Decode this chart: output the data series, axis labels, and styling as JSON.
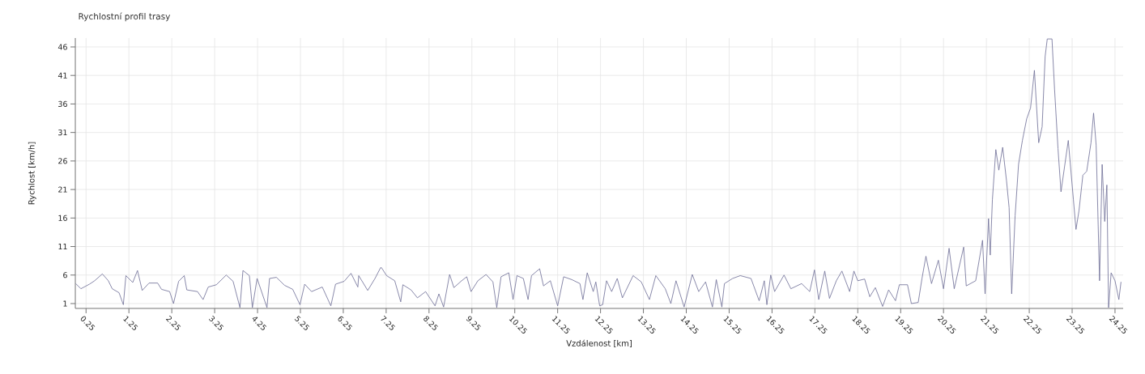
{
  "chart_data": {
    "type": "line",
    "title": "Rychlostní profil trasy",
    "xlabel": "Vzdálenost [km]",
    "ylabel": "Rychlost [km/h]",
    "x": [
      0.01,
      0.13,
      0.33,
      0.45,
      0.63,
      0.77,
      0.86,
      1.02,
      1.12,
      1.18,
      1.34,
      1.45,
      1.56,
      1.72,
      1.92,
      2.01,
      2.2,
      2.29,
      2.41,
      2.54,
      2.6,
      2.85,
      2.98,
      3.1,
      3.29,
      3.52,
      3.68,
      3.84,
      3.91,
      4.06,
      4.13,
      4.24,
      4.47,
      4.53,
      4.69,
      4.88,
      5.07,
      5.24,
      5.35,
      5.51,
      5.76,
      5.96,
      6.07,
      6.27,
      6.43,
      6.59,
      6.61,
      6.82,
      6.99,
      7.12,
      7.14,
      7.26,
      7.45,
      7.59,
      7.64,
      7.83,
      7.98,
      8.17,
      8.39,
      8.48,
      8.59,
      8.73,
      8.83,
      9.01,
      9.13,
      9.23,
      9.39,
      9.58,
      9.74,
      9.83,
      9.93,
      10.11,
      10.21,
      10.3,
      10.45,
      10.56,
      10.64,
      10.83,
      10.92,
      11.08,
      11.25,
      11.39,
      11.58,
      11.77,
      11.84,
      11.94,
      12.08,
      12.14,
      12.23,
      12.3,
      12.39,
      12.51,
      12.64,
      12.76,
      13.01,
      13.2,
      13.39,
      13.54,
      13.76,
      13.89,
      14.01,
      14.2,
      14.39,
      14.54,
      14.7,
      14.86,
      14.95,
      15.08,
      15.14,
      15.33,
      15.51,
      15.76,
      15.95,
      16.07,
      16.13,
      16.22,
      16.31,
      16.53,
      16.69,
      16.94,
      17.13,
      17.24,
      17.34,
      17.48,
      17.59,
      17.75,
      17.88,
      18.06,
      18.16,
      18.25,
      18.41,
      18.53,
      18.66,
      18.83,
      18.97,
      19.13,
      19.22,
      19.41,
      19.5,
      19.66,
      19.75,
      19.84,
      19.97,
      20.13,
      20.25,
      20.38,
      20.5,
      20.72,
      20.78,
      21.0,
      21.16,
      21.22,
      21.3,
      21.34,
      21.39,
      21.47,
      21.54,
      21.63,
      21.72,
      21.78,
      21.84,
      21.92,
      22.0,
      22.09,
      22.19,
      22.28,
      22.37,
      22.47,
      22.55,
      22.62,
      22.67,
      22.78,
      22.84,
      22.92,
      22.99,
      23.16,
      23.28,
      23.34,
      23.41,
      23.5,
      23.59,
      23.69,
      23.75,
      23.81,
      23.89,
      23.95,
      24.01,
      24.06,
      24.1,
      24.16,
      24.25,
      24.34,
      24.39
    ],
    "values": [
      4.5,
      3.6,
      4.4,
      5.0,
      6.2,
      5.0,
      3.6,
      2.9,
      0.8,
      5.9,
      4.7,
      6.8,
      3.3,
      4.6,
      4.6,
      3.5,
      3.1,
      1.0,
      4.9,
      5.9,
      3.4,
      3.1,
      1.7,
      3.9,
      4.3,
      6.0,
      4.9,
      0.3,
      6.8,
      5.9,
      0.3,
      5.4,
      0.3,
      5.4,
      5.6,
      4.2,
      3.5,
      0.8,
      4.4,
      3.1,
      3.9,
      0.6,
      4.4,
      4.9,
      6.3,
      3.9,
      5.9,
      3.3,
      5.4,
      7.3,
      7.3,
      5.9,
      5.0,
      1.3,
      4.3,
      3.4,
      2.0,
      3.1,
      0.6,
      2.7,
      0.4,
      6.1,
      3.8,
      5.0,
      5.7,
      3.1,
      5.0,
      6.1,
      4.8,
      0.3,
      5.7,
      6.4,
      1.7,
      5.9,
      5.4,
      1.7,
      5.9,
      7.1,
      4.1,
      5.0,
      0.6,
      5.7,
      5.2,
      4.5,
      1.7,
      6.4,
      3.1,
      4.8,
      0.6,
      0.8,
      5.0,
      3.1,
      5.4,
      2.0,
      5.9,
      4.8,
      1.7,
      5.9,
      3.6,
      1.0,
      5.0,
      0.4,
      6.1,
      3.1,
      4.8,
      0.4,
      5.2,
      0.4,
      4.5,
      5.4,
      5.9,
      5.4,
      1.5,
      5.0,
      0.8,
      6.0,
      3.1,
      6.0,
      3.6,
      4.5,
      3.1,
      6.9,
      1.7,
      6.7,
      1.9,
      5.0,
      6.7,
      3.1,
      6.7,
      5.0,
      5.3,
      2.2,
      3.8,
      0.5,
      3.4,
      1.5,
      4.3,
      4.3,
      1.0,
      1.2,
      5.5,
      9.3,
      4.5,
      8.6,
      3.6,
      10.7,
      3.6,
      10.9,
      4.1,
      5.0,
      12.1,
      2.7,
      15.9,
      9.5,
      19.2,
      28.0,
      24.4,
      28.4,
      22.5,
      17.8,
      2.7,
      16.4,
      25.4,
      29.6,
      33.4,
      35.3,
      41.9,
      29.2,
      32.0,
      44.3,
      47.4,
      47.4,
      38.6,
      28.2,
      20.6,
      29.6,
      19.2,
      14.0,
      17.3,
      23.5,
      24.2,
      29.2,
      34.4,
      28.8,
      5.0,
      25.4,
      15.4,
      21.8,
      0.3,
      6.4,
      5.0,
      1.7,
      4.8
    ],
    "color": "#6b6b94",
    "xlim": [
      0,
      24.44
    ],
    "ylim": [
      0.15,
      47.56
    ],
    "xticks": [
      0.25,
      1.25,
      2.25,
      3.25,
      4.25,
      5.25,
      6.25,
      7.25,
      8.25,
      9.25,
      10.25,
      11.25,
      12.25,
      13.25,
      14.25,
      15.25,
      16.25,
      17.25,
      18.25,
      19.25,
      20.25,
      21.25,
      22.25,
      23.25,
      24.25
    ],
    "yticks": [
      1,
      6,
      11,
      16,
      21,
      26,
      31,
      36,
      41,
      46
    ],
    "grid": true
  }
}
